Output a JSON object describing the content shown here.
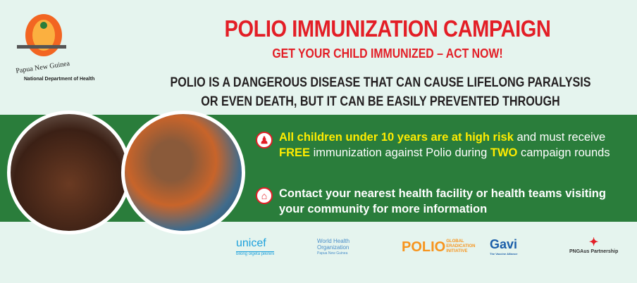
{
  "header": {
    "country": "Papua New Guinea",
    "department": "National Department of Health",
    "title": "POLIO IMMUNIZATION CAMPAIGN",
    "subtitle": "GET YOUR CHILD IMMUNIZED – ACT NOW!",
    "warning": "POLIO IS A DANGEROUS DISEASE THAT CAN CAUSE LIFELONG PARALYSIS OR EVEN DEATH, BUT IT CAN BE EASILY PREVENTED THROUGH IMMUNIZATION"
  },
  "messages": {
    "b1_highlight": "All children under 10 years are at high risk",
    "b1_part2": " and must receive ",
    "b1_free": "FREE",
    "b1_part3": " immunization against Polio during ",
    "b1_two": "TWO",
    "b1_part4": " campaign rounds",
    "b2": "Contact your nearest health facility or health teams visiting your community for more information"
  },
  "icons": [
    "child-icon",
    "health-facility-icon"
  ],
  "partners": {
    "unicef": "unicef",
    "unicef_tag": "bilong olgeta pikinini",
    "who": "World Health Organization",
    "who_tag": "Papua New Guinea",
    "gpei_main": "POLIO",
    "gpei_sub": "GLOBAL ERADICATION INITIATIVE",
    "gavi": "Gavi",
    "gavi_tag": "The Vaccine Alliance",
    "pngaus": "PNGAus Partnership"
  },
  "colors": {
    "red": "#e31e26",
    "green": "#2a7d3b",
    "yellow": "#ffec00",
    "background": "#e5f4ee"
  }
}
